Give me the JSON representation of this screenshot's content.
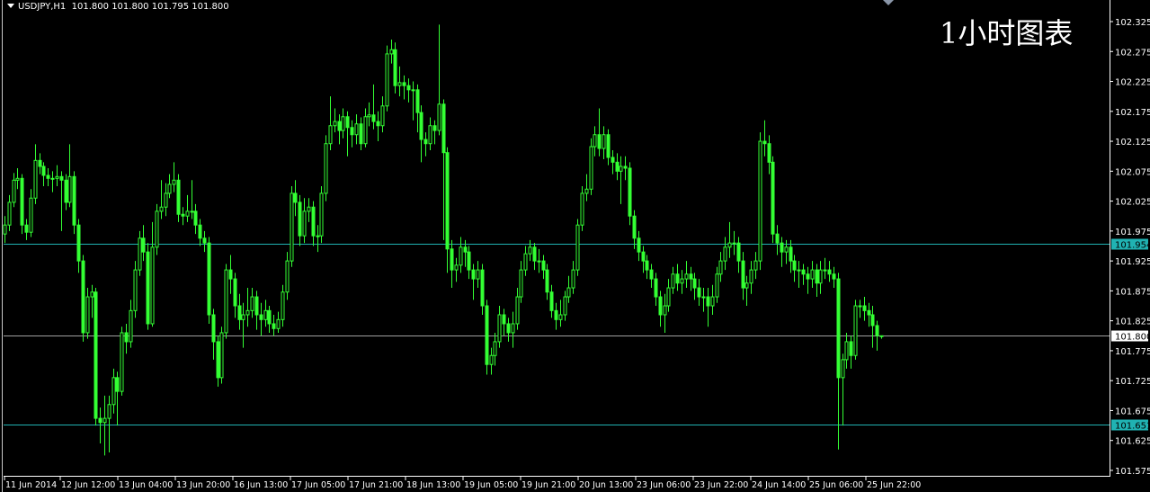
{
  "header": {
    "symbol": "USDJPY,H1",
    "quote": "101.800 101.800 101.795 101.800"
  },
  "caption": "1小时图表",
  "colors": {
    "background": "#000000",
    "candle": "#33ff33",
    "level_line": "#20b2b2",
    "bid_line": "#a0a0a0",
    "axis": "#ffffff"
  },
  "chart_data": {
    "type": "candlestick",
    "ylim": [
      101.575,
      102.34
    ],
    "y_ticks": [
      "102.325",
      "102.275",
      "102.225",
      "102.175",
      "102.125",
      "102.075",
      "102.025",
      "101.975",
      "101.925",
      "101.875",
      "101.825",
      "101.775",
      "101.725",
      "101.675",
      "101.625",
      "101.575"
    ],
    "x_ticks": [
      "11 Jun 2014",
      "12 Jun 12:00",
      "13 Jun 04:00",
      "13 Jun 20:00",
      "16 Jun 13:00",
      "17 Jun 05:00",
      "17 Jun 21:00",
      "18 Jun 13:00",
      "19 Jun 05:00",
      "19 Jun 21:00",
      "20 Jun 13:00",
      "23 Jun 06:00",
      "23 Jun 22:00",
      "24 Jun 14:00",
      "25 Jun 06:00",
      "25 Jun 22:00"
    ],
    "levels": [
      {
        "price": "101.954",
        "style": "cyan"
      },
      {
        "price": "101.800",
        "style": "bid"
      },
      {
        "price": "101.651",
        "style": "cyan"
      }
    ],
    "first_open": 101.97,
    "close": [
      101.985,
      102.023,
      102.06,
      102.063,
      101.985,
      101.973,
      102.03,
      102.093,
      102.083,
      102.068,
      102.063,
      102.063,
      102.066,
      102.06,
      102.023,
      102.066,
      101.985,
      101.925,
      101.805,
      101.865,
      101.873,
      101.662,
      101.655,
      101.662,
      101.685,
      101.73,
      101.707,
      101.805,
      101.79,
      101.842,
      101.91,
      101.963,
      101.94,
      101.82,
      101.948,
      102.008,
      102.015,
      102.038,
      102.053,
      102.06,
      102.003,
      102.0,
      102.008,
      102.008,
      101.985,
      101.963,
      101.955,
      101.835,
      101.79,
      101.73,
      101.805,
      101.91,
      101.895,
      101.85,
      101.827,
      101.835,
      101.842,
      101.865,
      101.835,
      101.827,
      101.842,
      101.82,
      101.812,
      101.827,
      101.873,
      101.925,
      102.038,
      102.023,
      101.967,
      102.008,
      102.015,
      101.967,
      101.967,
      102.038,
      102.121,
      102.151,
      102.158,
      102.143,
      102.166,
      102.148,
      102.136,
      102.154,
      102.121,
      102.166,
      102.169,
      102.158,
      102.151,
      102.184,
      102.271,
      102.278,
      102.218,
      102.223,
      102.218,
      102.211,
      102.211,
      102.173,
      102.128,
      102.121,
      102.151,
      102.143,
      102.187,
      102.106,
      101.945,
      101.91,
      101.918,
      101.948,
      101.94,
      101.91,
      101.895,
      101.91,
      101.85,
      101.752,
      101.767,
      101.79,
      101.835,
      101.82,
      101.805,
      101.82,
      101.865,
      101.91,
      101.937,
      101.948,
      101.925,
      101.925,
      101.91,
      101.873,
      101.842,
      101.827,
      101.835,
      101.865,
      101.88,
      101.91,
      101.985,
      102.038,
      102.045,
      102.116,
      102.136,
      102.113,
      102.136,
      102.098,
      102.09,
      102.075,
      102.083,
      102.08,
      102.0,
      101.963,
      101.94,
      101.925,
      101.91,
      101.895,
      101.865,
      101.835,
      101.85,
      101.88,
      101.903,
      101.888,
      101.895,
      101.903,
      101.895,
      101.88,
      101.865,
      101.865,
      101.85,
      101.865,
      101.903,
      101.925,
      101.948,
      101.955,
      101.955,
      101.925,
      101.88,
      101.888,
      101.91,
      101.925,
      102.125,
      102.121,
      102.09,
      101.97,
      101.955,
      101.94,
      101.948,
      101.925,
      101.91,
      101.91,
      101.903,
      101.895,
      101.91,
      101.888,
      101.91,
      101.91,
      101.903,
      101.895,
      101.73,
      101.76,
      101.79,
      101.767,
      101.85,
      101.85,
      101.842,
      101.835,
      101.817,
      101.8,
      101.8
    ],
    "high": [
      102.0,
      102.035,
      102.072,
      102.08,
      102.07,
      101.995,
      102.045,
      102.12,
      102.105,
      102.09,
      102.08,
      102.075,
      102.085,
      102.075,
      102.07,
      102.12,
      102.075,
      101.995,
      101.935,
      101.88,
      101.885,
      101.88,
      101.68,
      101.7,
      101.7,
      101.745,
      101.74,
      101.815,
      101.82,
      101.86,
      101.925,
      101.975,
      101.985,
      101.955,
      101.99,
      102.02,
      102.06,
      102.055,
      102.07,
      102.09,
      102.07,
      102.015,
      102.035,
      102.06,
      102.02,
      101.995,
      101.975,
      101.965,
      101.845,
      101.8,
      101.815,
      101.92,
      101.935,
      101.905,
      101.87,
      101.855,
      101.88,
      101.88,
      101.875,
      101.855,
      101.86,
      101.85,
      101.835,
      101.84,
      101.885,
      101.94,
      102.05,
      102.06,
      102.035,
      102.03,
      102.03,
      102.025,
      101.985,
      102.05,
      102.135,
      102.2,
      102.18,
      102.17,
      102.18,
      102.175,
      102.16,
      102.17,
      102.165,
      102.18,
      102.19,
      102.22,
      102.175,
      102.2,
      102.285,
      102.295,
      102.29,
      102.25,
      102.235,
      102.23,
      102.225,
      102.22,
      102.185,
      102.14,
      102.165,
      102.16,
      102.32,
      102.195,
      102.115,
      101.96,
      101.93,
      101.965,
      101.96,
      101.95,
      101.92,
      101.925,
      101.92,
      101.86,
      101.78,
      101.805,
      101.85,
      101.845,
      101.83,
      101.84,
      101.88,
      101.925,
      101.95,
      101.96,
      101.955,
      101.945,
      101.935,
      101.92,
      101.885,
      101.855,
      101.86,
      101.875,
      101.9,
      101.925,
      101.995,
      102.05,
      102.07,
      102.13,
      102.15,
      102.18,
      102.15,
      102.145,
      102.11,
      102.105,
      102.1,
      102.1,
      102.09,
      102.01,
      101.975,
      101.95,
      101.935,
      101.92,
      101.905,
      101.875,
      101.87,
      101.895,
      101.915,
      101.92,
      101.91,
      101.925,
      101.915,
      101.905,
      101.895,
      101.88,
      101.88,
      101.885,
      101.915,
      101.94,
      101.965,
      101.99,
      101.975,
      101.965,
      101.94,
      101.9,
      101.925,
      101.94,
      102.14,
      102.16,
      102.135,
      102.1,
      101.985,
      101.965,
      101.96,
      101.96,
      101.935,
      101.925,
      101.92,
      101.915,
      101.925,
      101.92,
      101.925,
      101.93,
      101.925,
      101.915,
      101.905,
      101.77,
      101.805,
      101.8,
      101.86,
      101.86,
      101.865,
      101.855,
      101.85,
      101.825,
      101.8
    ],
    "low": [
      101.955,
      101.975,
      102.015,
      102.045,
      101.97,
      101.96,
      101.965,
      102.02,
      102.07,
      102.05,
      102.05,
      102.04,
      102.05,
      101.975,
      102.01,
      102.015,
      101.97,
      101.905,
      101.79,
      101.795,
      101.83,
      101.65,
      101.62,
      101.6,
      101.605,
      101.67,
      101.65,
      101.7,
      101.77,
      101.78,
      101.83,
      101.9,
      101.925,
      101.81,
      101.815,
      101.935,
      101.995,
      102.0,
      102.03,
      102.04,
      101.99,
      101.985,
      101.99,
      101.995,
      101.97,
      101.95,
      101.94,
      101.82,
      101.76,
      101.715,
      101.72,
      101.795,
      101.87,
      101.83,
      101.81,
      101.78,
      101.815,
      101.83,
      101.81,
      101.8,
      101.815,
      101.805,
      101.8,
      101.805,
      101.815,
      101.86,
      101.915,
      102.0,
      101.95,
      101.955,
      101.99,
      101.95,
      101.94,
      101.955,
      102.025,
      102.11,
      102.14,
      102.12,
      102.13,
      102.1,
      102.115,
      102.12,
      102.11,
      102.115,
      102.15,
      102.145,
      102.125,
      102.14,
      102.175,
      102.255,
      102.205,
      102.2,
      102.195,
      102.19,
      102.16,
      102.14,
      102.09,
      102.1,
      102.11,
      102.12,
      102.135,
      101.96,
      101.905,
      101.88,
      101.89,
      101.905,
      101.915,
      101.895,
      101.86,
      101.88,
      101.835,
      101.735,
      101.735,
      101.75,
      101.78,
      101.8,
      101.79,
      101.78,
      101.81,
      101.855,
      101.9,
      101.925,
      101.91,
      101.905,
      101.895,
      101.86,
      101.83,
      101.81,
      101.815,
      101.825,
      101.855,
      101.87,
      101.9,
      101.975,
      102.025,
      102.035,
      102.1,
      102.1,
      102.095,
      102.085,
      102.07,
      102.06,
      102.02,
      102.06,
      101.985,
      101.945,
      101.925,
      101.905,
      101.895,
      101.88,
      101.85,
      101.815,
      101.805,
      101.84,
      101.87,
      101.875,
      101.87,
      101.88,
      101.875,
      101.86,
      101.85,
      101.84,
      101.815,
      101.835,
      101.855,
      101.89,
      101.91,
      101.93,
      101.935,
      101.905,
      101.86,
      101.85,
      101.87,
      101.895,
      101.91,
      102.1,
      102.07,
      101.955,
      101.935,
      101.915,
      101.92,
      101.905,
      101.89,
      101.88,
      101.885,
      101.87,
      101.88,
      101.865,
      101.87,
      101.895,
      101.89,
      101.88,
      101.61,
      101.65,
      101.745,
      101.745,
      101.76,
      101.83,
      101.825,
      101.815,
      101.78,
      101.775,
      101.795
    ]
  }
}
